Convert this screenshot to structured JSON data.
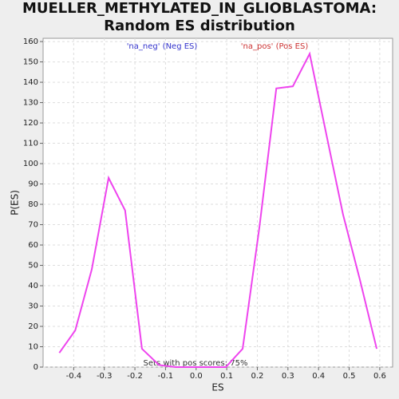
{
  "chart_data": {
    "type": "line",
    "title": "MUELLER_METHYLATED_IN_GLIOBLASTOMA: Random ES distribution",
    "xlabel": "ES",
    "ylabel": "P(ES)",
    "annotations": [
      "'na_neg' (Neg ES)",
      "'na_pos' (Pos ES)",
      "Sets with pos scores: 75%"
    ],
    "x": [
      -0.447,
      -0.395,
      -0.341,
      -0.286,
      -0.232,
      -0.177,
      -0.121,
      -0.067,
      -0.012,
      0.043,
      0.097,
      0.152,
      0.207,
      0.262,
      0.316,
      0.371,
      0.426,
      0.48,
      0.535,
      0.59
    ],
    "series": [
      {
        "name": "P(ES)",
        "color": "#ee44ee",
        "values": [
          7,
          18,
          48,
          93,
          77,
          9,
          1,
          0,
          0,
          0,
          0,
          9,
          69,
          137,
          138,
          154,
          114,
          75,
          43,
          9
        ]
      }
    ],
    "xlim": [
      -0.5,
      0.642
    ],
    "ylim": [
      0,
      161.6
    ],
    "xticks": [
      -0.4,
      -0.3,
      -0.2,
      -0.1,
      {
        "value": 0,
        "label": "0.0"
      },
      0.1,
      0.2,
      0.3,
      0.4,
      0.5,
      0.6
    ],
    "yticks": [
      0,
      10,
      20,
      30,
      40,
      50,
      60,
      70,
      80,
      90,
      100,
      110,
      120,
      130,
      140,
      150,
      160
    ],
    "grid": true
  }
}
